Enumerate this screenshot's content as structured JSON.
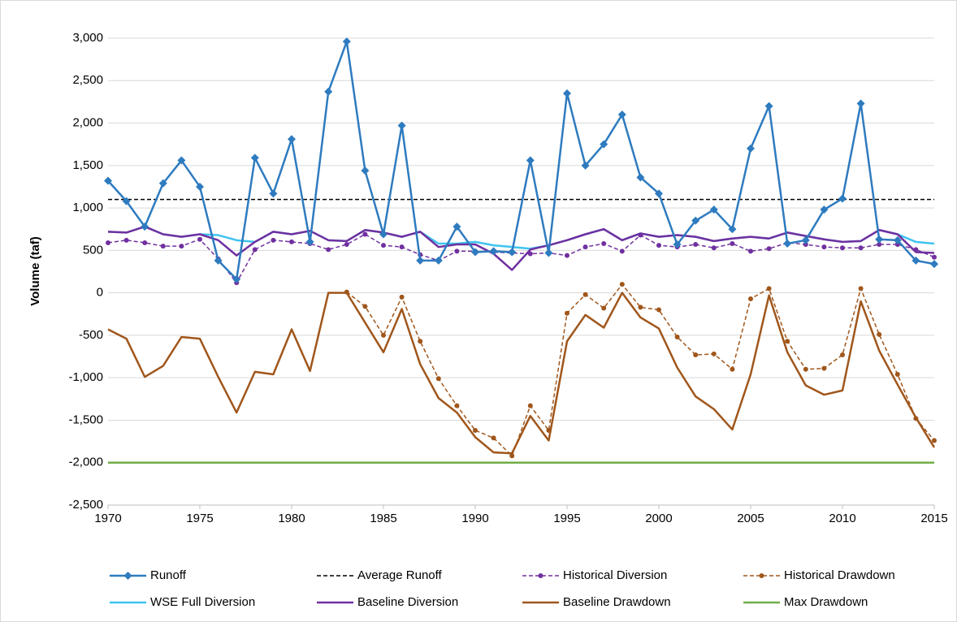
{
  "chart_data": {
    "type": "line",
    "y_label": "Volume (taf)",
    "x": [
      1970,
      1971,
      1972,
      1973,
      1974,
      1975,
      1976,
      1977,
      1978,
      1979,
      1980,
      1981,
      1982,
      1983,
      1984,
      1985,
      1986,
      1987,
      1988,
      1989,
      1990,
      1991,
      1992,
      1993,
      1994,
      1995,
      1996,
      1997,
      1998,
      1999,
      2000,
      2001,
      2002,
      2003,
      2004,
      2005,
      2006,
      2007,
      2008,
      2009,
      2010,
      2011,
      2012,
      2013,
      2014,
      2015
    ],
    "xlim": [
      1970,
      2015
    ],
    "xticks": [
      1970,
      1975,
      1980,
      1985,
      1990,
      1995,
      2000,
      2005,
      2010,
      2015
    ],
    "ylim": [
      -2500,
      3000
    ],
    "yticks": [
      {
        "value": -2500,
        "label": "-2,500"
      },
      {
        "value": -2000,
        "label": "-2,000"
      },
      {
        "value": -1500,
        "label": "-1,500"
      },
      {
        "value": -1000,
        "label": "-1,000"
      },
      {
        "value": -500,
        "label": "-500"
      },
      0,
      500,
      {
        "value": 1000,
        "label": "1,000"
      },
      {
        "value": 1500,
        "label": "1,500"
      },
      {
        "value": 2000,
        "label": "2,000"
      },
      {
        "value": 2500,
        "label": "2,500"
      },
      {
        "value": 3000,
        "label": "3,000"
      }
    ],
    "grid": true,
    "series": [
      {
        "name": "Runoff",
        "color": "#2e7bbf",
        "dash": "solid",
        "marker": "diamond",
        "values": [
          1320,
          1080,
          780,
          1290,
          1560,
          1250,
          380,
          160,
          1590,
          1170,
          1810,
          600,
          2370,
          2960,
          1440,
          690,
          1970,
          380,
          380,
          780,
          480,
          490,
          480,
          1560,
          470,
          2350,
          1500,
          1750,
          2100,
          1360,
          1170,
          570,
          850,
          980,
          750,
          1700,
          2200,
          580,
          620,
          980,
          1110,
          2230,
          630,
          620,
          380,
          340
        ]
      },
      {
        "name": "Average Runoff",
        "color": "#000000",
        "dash": "dashed",
        "marker": "none",
        "x": [
          1970,
          2015
        ],
        "values": [
          1100,
          1100
        ]
      },
      {
        "name": "Historical Diversion",
        "color": "#7030a0",
        "dash": "dashed",
        "marker": "circle",
        "values": [
          590,
          620,
          590,
          550,
          550,
          630,
          400,
          120,
          510,
          620,
          600,
          580,
          510,
          570,
          690,
          560,
          540,
          450,
          380,
          490,
          490,
          480,
          470,
          460,
          470,
          440,
          540,
          580,
          490,
          680,
          560,
          540,
          570,
          530,
          580,
          490,
          520,
          590,
          570,
          540,
          530,
          530,
          570,
          570,
          510,
          420
        ]
      },
      {
        "name": "Historical Drawdown",
        "color": "#a0561b",
        "dash": "dashed",
        "marker": "circle",
        "values": [
          null,
          null,
          null,
          null,
          null,
          null,
          null,
          null,
          null,
          null,
          null,
          null,
          null,
          10,
          -160,
          -500,
          -50,
          -570,
          -1010,
          -1330,
          -1620,
          -1710,
          -1920,
          -1330,
          -1620,
          -240,
          -20,
          -180,
          100,
          -170,
          -200,
          -520,
          -730,
          -720,
          -900,
          -70,
          50,
          -570,
          -900,
          -890,
          -730,
          50,
          -490,
          -960,
          -1480,
          -1740
        ]
      },
      {
        "name": "WSE Full Diversion",
        "color": "#3fc4f0",
        "dash": "solid",
        "marker": "none",
        "values": [
          720,
          710,
          780,
          690,
          660,
          690,
          680,
          620,
          600,
          720,
          690,
          730,
          620,
          610,
          740,
          710,
          660,
          720,
          580,
          580,
          600,
          560,
          540,
          520,
          560,
          620,
          690,
          750,
          620,
          700,
          660,
          680,
          660,
          610,
          640,
          660,
          640,
          710,
          670,
          630,
          600,
          610,
          740,
          690,
          600,
          580
        ]
      },
      {
        "name": "Baseline Diversion",
        "color": "#7030a0",
        "dash": "solid",
        "marker": "none",
        "values": [
          720,
          710,
          780,
          690,
          660,
          690,
          620,
          440,
          600,
          720,
          690,
          730,
          620,
          610,
          740,
          710,
          660,
          720,
          540,
          570,
          570,
          460,
          270,
          510,
          560,
          620,
          690,
          750,
          620,
          700,
          660,
          680,
          660,
          610,
          640,
          660,
          640,
          710,
          670,
          630,
          600,
          610,
          740,
          690,
          480,
          470
        ]
      },
      {
        "name": "Baseline Drawdown",
        "color": "#a0561b",
        "dash": "solid",
        "marker": "none",
        "values": [
          -430,
          -540,
          -990,
          -860,
          -520,
          -540,
          -990,
          -1410,
          -930,
          -960,
          -430,
          -920,
          0,
          0,
          -350,
          -700,
          -190,
          -840,
          -1240,
          -1410,
          -1700,
          -1880,
          -1890,
          -1450,
          -1740,
          -570,
          -260,
          -410,
          0,
          -290,
          -420,
          -880,
          -1220,
          -1370,
          -1610,
          -960,
          -30,
          -700,
          -1090,
          -1200,
          -1150,
          -100,
          -680,
          -1080,
          -1470,
          -1820
        ]
      },
      {
        "name": "Max Drawdown",
        "color": "#70ad47",
        "dash": "solid",
        "marker": "none",
        "x": [
          1970,
          2015
        ],
        "values": [
          -2000,
          -2000
        ]
      }
    ]
  }
}
